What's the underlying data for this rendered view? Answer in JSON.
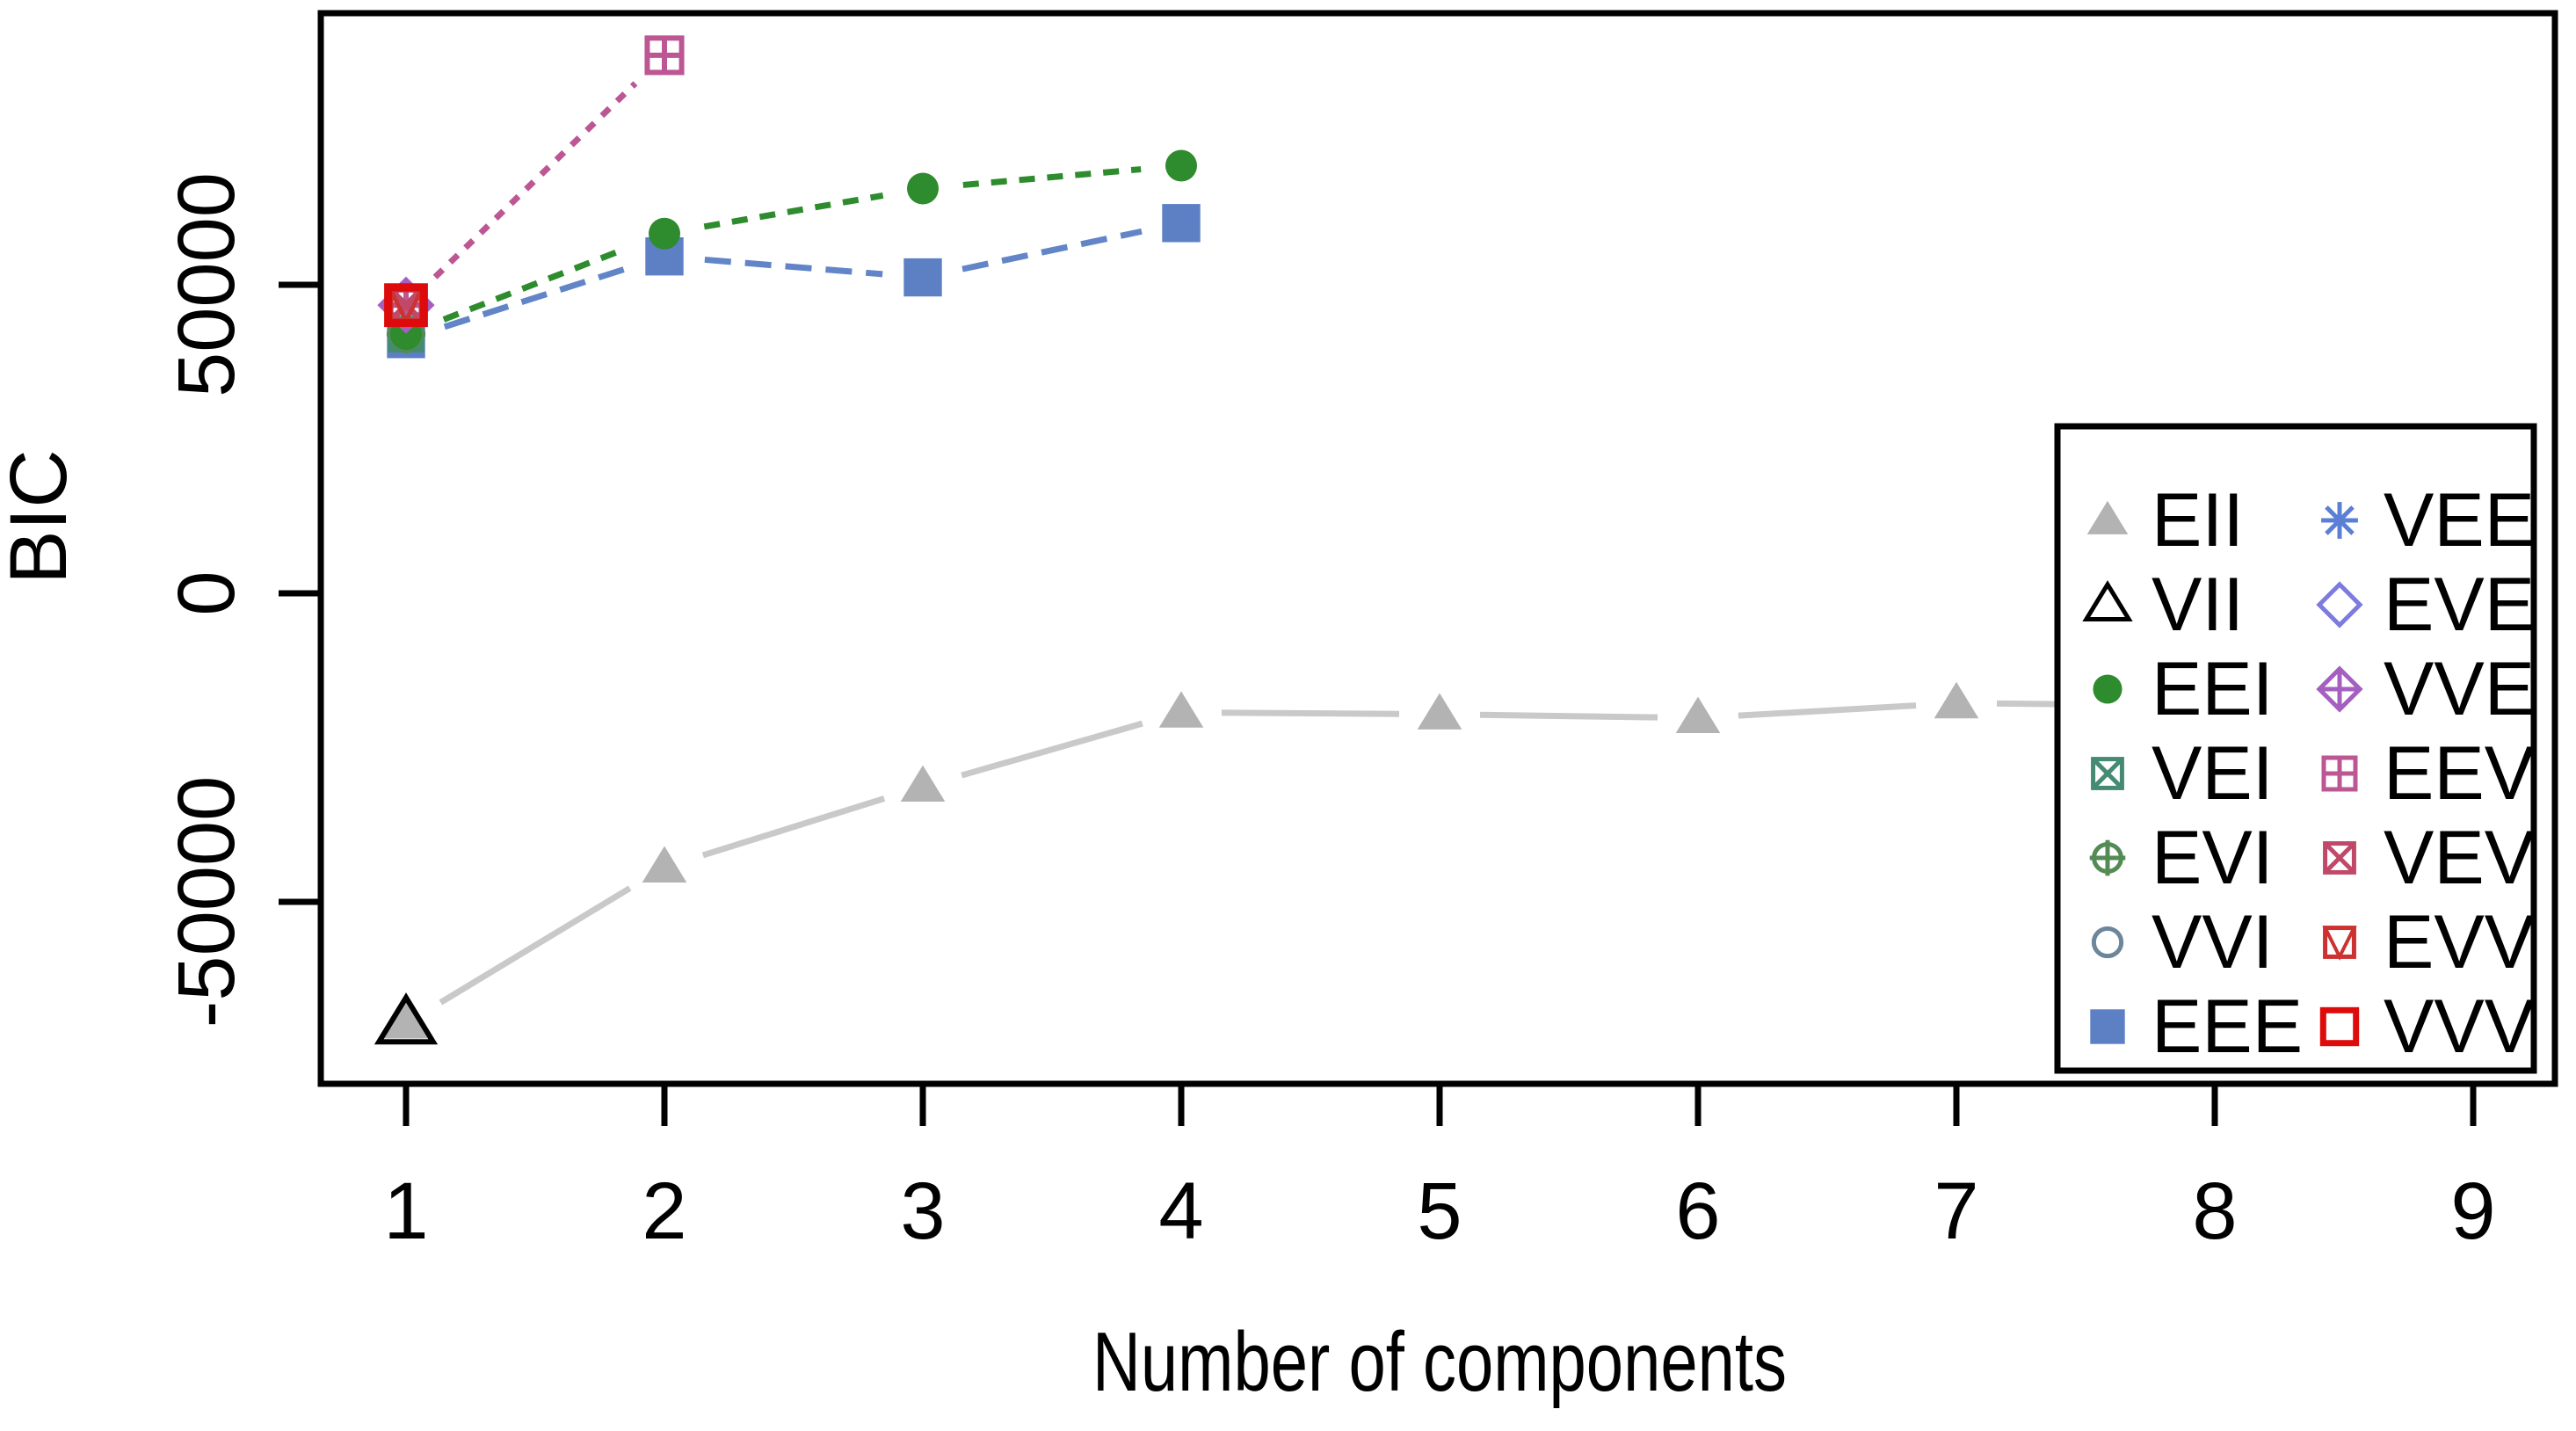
{
  "figure": {
    "background": "#ffffff",
    "title": "",
    "xlabel": "Number of components",
    "ylabel": "BIC",
    "x_tick_labels": [
      "1",
      "2",
      "3",
      "4",
      "5",
      "6",
      "7",
      "8",
      "9"
    ],
    "y_tick_labels": [
      "50000",
      "0",
      "-50000"
    ]
  },
  "chart_data": {
    "type": "line",
    "title": "",
    "xlabel": "Number of components",
    "ylabel": "BIC",
    "xlim": [
      1,
      9
    ],
    "ylim": [
      -79000,
      94000
    ],
    "x_ticks": [
      1,
      2,
      3,
      4,
      5,
      6,
      7,
      8,
      9
    ],
    "y_ticks": [
      50000,
      0,
      -50000
    ],
    "grid": false,
    "legend_position": "bottom-right",
    "series": [
      {
        "name": "EII",
        "symbol": "triangle-filled",
        "color": "#b3b3b3",
        "line_color": "#c9c9c9",
        "dash": "",
        "marker_size": 46,
        "x": [
          1,
          2,
          3,
          4,
          5,
          6,
          7,
          8,
          9
        ],
        "y": [
          -69700,
          -44400,
          -31300,
          -19300,
          -19600,
          -20200,
          -17800,
          -18200,
          -18200
        ]
      },
      {
        "name": "VII",
        "symbol": "triangle-open",
        "color": "#000000",
        "line_color": "#000000",
        "dash": "",
        "marker_size": 56,
        "x": [
          1
        ],
        "y": [
          -69700
        ]
      },
      {
        "name": "EEI",
        "symbol": "circle-filled",
        "color": "#2e8b2e",
        "line_color": "#2e8b2e",
        "dash": "18 14",
        "marker_size": 40,
        "x": [
          1,
          2,
          3,
          4
        ],
        "y": [
          42000,
          58300,
          65600,
          69300
        ]
      },
      {
        "name": "VEI",
        "symbol": "square-x",
        "color": "#458b74",
        "line_color": "#458b74",
        "dash": "",
        "marker_size": 42,
        "x": [
          1
        ],
        "y": [
          42000
        ]
      },
      {
        "name": "EVI",
        "symbol": "circle-plus",
        "color": "#548b54",
        "line_color": "#548b54",
        "dash": "",
        "marker_size": 42,
        "x": [
          1
        ],
        "y": [
          42000
        ]
      },
      {
        "name": "VVI",
        "symbol": "circle-open",
        "color": "#6e8699",
        "line_color": "#6e8699",
        "dash": "",
        "marker_size": 40,
        "x": [
          1
        ],
        "y": [
          42000
        ]
      },
      {
        "name": "EEE",
        "symbol": "square-filled",
        "color": "#5d80c5",
        "line_color": "#6285c8",
        "dash": "30 16",
        "marker_size": 44,
        "x": [
          1,
          2,
          3,
          4
        ],
        "y": [
          41200,
          54600,
          51200,
          60000
        ]
      },
      {
        "name": "VEE",
        "symbol": "asterisk",
        "color": "#5b7fd4",
        "line_color": "#5b7fd4",
        "dash": "",
        "marker_size": 48,
        "x": [
          1
        ],
        "y": [
          46700
        ]
      },
      {
        "name": "EVE",
        "symbol": "diamond-open",
        "color": "#7d7ae0",
        "line_color": "#7d7ae0",
        "dash": "",
        "marker_size": 50,
        "x": [
          1
        ],
        "y": [
          46700
        ]
      },
      {
        "name": "VVE",
        "symbol": "diamond-plus",
        "color": "#a45fc0",
        "line_color": "#a45fc0",
        "dash": "",
        "marker_size": 54,
        "x": [
          1
        ],
        "y": [
          46700
        ]
      },
      {
        "name": "EEV",
        "symbol": "square-plus",
        "color": "#bc5794",
        "line_color": "#bc5794",
        "dash": "12 12",
        "marker_size": 46,
        "x": [
          1,
          2
        ],
        "y": [
          46700,
          87200
        ]
      },
      {
        "name": "VEV",
        "symbol": "square-x",
        "color": "#c0496a",
        "line_color": "#c0496a",
        "dash": "",
        "marker_size": 42,
        "x": [
          1
        ],
        "y": [
          46700
        ]
      },
      {
        "name": "EVV",
        "symbol": "square-triangle",
        "color": "#cc3230",
        "line_color": "#cc3230",
        "dash": "",
        "marker_size": 42,
        "x": [
          1
        ],
        "y": [
          46700
        ]
      },
      {
        "name": "VVV",
        "symbol": "square-open",
        "color": "#dd0b0b",
        "line_color": "#dd0b0b",
        "dash": "",
        "marker_size": 48,
        "x": [
          1
        ],
        "y": [
          46700
        ]
      }
    ],
    "legend": {
      "left_column": [
        "EII",
        "VII",
        "EEI",
        "VEI",
        "EVI",
        "VVI",
        "EEE"
      ],
      "right_column": [
        "VEE",
        "EVE",
        "VVE",
        "EEV",
        "VEV",
        "EVV",
        "VVV"
      ]
    }
  }
}
